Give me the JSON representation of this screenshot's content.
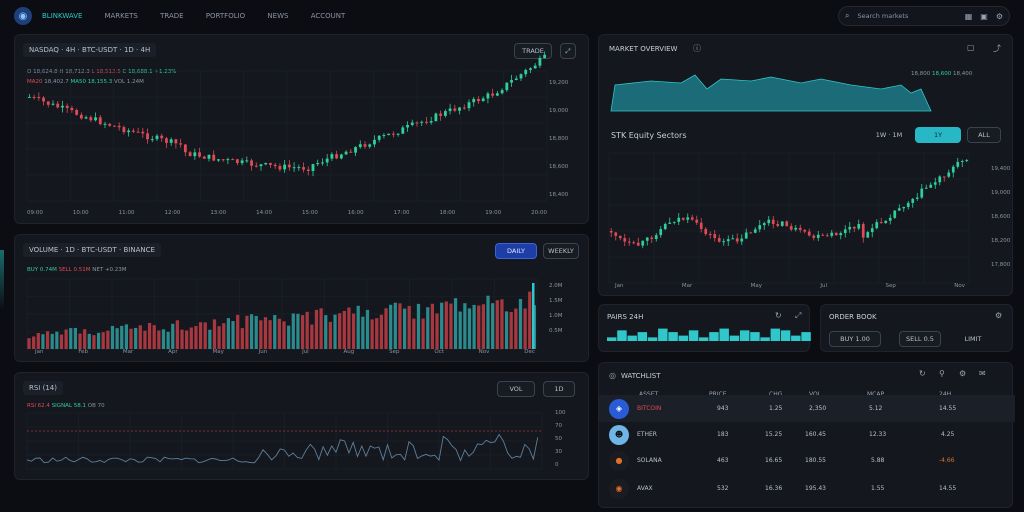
{
  "topbar": {
    "brand": "BLINKWAVE",
    "nav": [
      "MARKETS",
      "TRADE",
      "PORTFOLIO",
      "NEWS",
      "ACCOUNT"
    ],
    "search_placeholder": "Search markets"
  },
  "main_chart": {
    "title": "NASDAQ · 4H · BTC-USDT · 1D · 4H",
    "button": "TRADE",
    "legend": [
      {
        "text": "O 18,624.8 H 18,712.3",
        "tone": "n"
      },
      {
        "text": "L 18,512.5",
        "tone": "r"
      },
      {
        "text": "C 18,688.1",
        "tone": "g"
      },
      {
        "text": "+1.23%",
        "tone": "g"
      }
    ],
    "legend2": [
      {
        "text": "MA20",
        "tone": "r"
      },
      {
        "text": "18,402.7",
        "tone": "n"
      },
      {
        "text": "MA50 18,155.3",
        "tone": "g"
      },
      {
        "text": "VOL 1.24M",
        "tone": "n"
      }
    ],
    "y_labels": [
      "19,200",
      "19,000",
      "18,800",
      "18,600",
      "18,400",
      "18,200"
    ],
    "x_labels": [
      "09:00",
      "10:00",
      "11:00",
      "12:00",
      "13:00",
      "14:00",
      "15:00",
      "16:00",
      "17:00",
      "18:00",
      "19:00",
      "20:00"
    ]
  },
  "volume_chart": {
    "title": "VOLUME · 1D · BTC-USDT · BINANCE",
    "btn_active": "DAILY",
    "btn_other": "WEEKLY",
    "legend": [
      {
        "text": "BUY 0.74M",
        "tone": "g"
      },
      {
        "text": "SELL 0.51M",
        "tone": "r"
      },
      {
        "text": "NET +0.23M",
        "tone": "n"
      }
    ],
    "y_labels": [
      "2.0M",
      "1.5M",
      "1.0M",
      "0.5M",
      "0"
    ],
    "x_labels": [
      "Jan",
      "Feb",
      "Mar",
      "Apr",
      "May",
      "Jun",
      "Jul",
      "Aug",
      "Sep",
      "Oct",
      "Nov",
      "Dec"
    ]
  },
  "rsi_chart": {
    "title": "RSI (14)",
    "btn1": "VOL",
    "btn2": "1D",
    "legend": [
      {
        "text": "RSI 62.4",
        "tone": "r"
      },
      {
        "text": "SIGNAL 58.1",
        "tone": "g"
      },
      {
        "text": "OB 70",
        "tone": "n"
      }
    ],
    "y_labels": [
      "100",
      "70",
      "50",
      "30",
      "0"
    ],
    "x_labels": [
      "09:00",
      "11:00",
      "13:00",
      "15:00",
      "17:00",
      "19:00"
    ]
  },
  "overview": {
    "title": "MARKET OVERVIEW",
    "area_labels": [
      "18,800",
      "18,600",
      "18,400"
    ],
    "subtitle": "STK Equity Sectors",
    "tabs": [
      "1W · 1M",
      "1Y",
      "ALL"
    ],
    "y_labels": [
      "19,400",
      "19,000",
      "18,600",
      "18,200",
      "17,800"
    ],
    "x_labels": [
      "Jan",
      "Mar",
      "May",
      "Jul",
      "Sep",
      "Nov"
    ]
  },
  "mini1": {
    "title": "PAIRS 24H",
    "sparks": "▂▆▃▅▂▇▅▃▆▂▅▇▃▆▅▂▇▆▃▅"
  },
  "mini2": {
    "title": "ORDER BOOK",
    "buttons": [
      "BUY 1.00",
      "SELL 0.5",
      "LIMIT"
    ]
  },
  "watchlist": {
    "title": "WATCHLIST",
    "headers": [
      "ASSET",
      "PRICE",
      "CHG",
      "VOL",
      "MCAP",
      "24H"
    ],
    "rows": [
      {
        "name": "BITCOIN",
        "price": "943",
        "chg": "1.25",
        "vol": "2,350",
        "mcap": "5.12",
        "h24": "14.55",
        "color": "#2a5bd7",
        "h24color": "#b8c0cc"
      },
      {
        "name": "ETHER",
        "price": "183",
        "chg": "15.25",
        "vol": "160.45",
        "mcap": "12.33",
        "h24": "4.25",
        "color": "#6fb5e6",
        "h24color": "#b8c0cc"
      },
      {
        "name": "SOLANA",
        "price": "463",
        "chg": "16.65",
        "vol": "180.55",
        "mcap": "5.88",
        "h24": "-4.66",
        "color": "#1a1c22",
        "h24color": "#e0702a"
      },
      {
        "name": "AVAX",
        "price": "532",
        "chg": "16.36",
        "vol": "195.43",
        "mcap": "1.55",
        "h24": "14.55",
        "color": "#1a1c22",
        "h24color": "#b8c0cc"
      }
    ]
  }
}
